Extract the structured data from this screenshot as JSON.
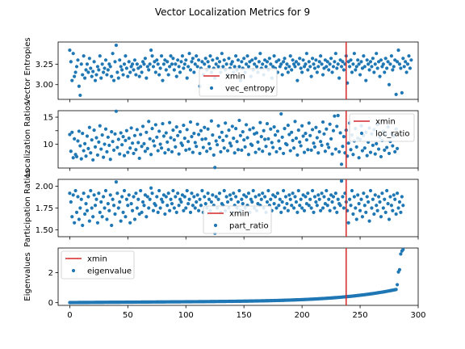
{
  "title": "Vector Localization Metrics for 9",
  "colors": {
    "points": "#1f77b4",
    "xmin_line": "#d62728"
  },
  "chart_data": [
    {
      "type": "scatter",
      "ylabel": "Vector Entropies",
      "xlim": [
        -10,
        300
      ],
      "ylim": [
        2.82,
        3.52
      ],
      "yticks": [
        3.0,
        3.25
      ],
      "yticklabels": [
        "3.00",
        "3.25"
      ],
      "xticks": [
        0,
        50,
        100,
        150,
        200,
        250,
        300
      ],
      "xticks_labeled": false,
      "legend": {
        "position": "lower-center",
        "entries": [
          "xmin",
          "vec_entropy"
        ]
      },
      "series": [
        {
          "name": "vec_entropy",
          "y": [
            3.42,
            3.28,
            3.05,
            3.38,
            3.1,
            3.15,
            3.22,
            3.3,
            2.98,
            2.87,
            3.25,
            3.12,
            3.35,
            3.08,
            3.18,
            3.25,
            3.15,
            3.32,
            3.2,
            3.1,
            3.16,
            3.28,
            3.05,
            3.12,
            3.22,
            3.18,
            3.35,
            3.08,
            3.25,
            3.15,
            3.2,
            3.3,
            3.12,
            3.18,
            3.25,
            3.22,
            3.1,
            3.38,
            3.05,
            3.28,
            3.48,
            3.15,
            3.08,
            3.3,
            3.22,
            3.18,
            3.12,
            3.25,
            3.35,
            3.2,
            3.1,
            3.28,
            3.15,
            3.22,
            3.25,
            3.18,
            3.3,
            3.12,
            3.25,
            3.2,
            3.1,
            3.22,
            3.15,
            3.28,
            3.25,
            3.32,
            3.08,
            3.22,
            3.18,
            3.25,
            3.42,
            3.35,
            3.22,
            3.28,
            3.15,
            3.3,
            3.25,
            3.12,
            3.2,
            3.35,
            3.05,
            3.25,
            3.3,
            3.18,
            3.28,
            3.12,
            3.22,
            3.35,
            3.25,
            3.32,
            3.18,
            3.25,
            3.1,
            3.3,
            3.22,
            3.15,
            3.28,
            3.35,
            3.2,
            3.25,
            3.3,
            3.08,
            3.22,
            3.38,
            3.18,
            3.28,
            3.32,
            3.15,
            3.25,
            3.35,
            3.22,
            3.3,
            2.98,
            3.2,
            3.28,
            3.12,
            3.25,
            3.32,
            3.18,
            3.28,
            3.22,
            3.35,
            3.15,
            3.3,
            3.2,
            3.08,
            3.25,
            3.32,
            3.22,
            3.28,
            3.15,
            3.38,
            3.22,
            3.3,
            3.18,
            3.25,
            3.12,
            3.32,
            3.2,
            3.25,
            3.28,
            3.15,
            3.22,
            3.35,
            3.18,
            3.3,
            3.22,
            3.05,
            3.28,
            3.2,
            3.32,
            3.15,
            3.25,
            3.35,
            3.22,
            3.28,
            3.1,
            3.3,
            3.18,
            3.25,
            3.32,
            3.22,
            3.15,
            3.28,
            3.38,
            3.2,
            3.25,
            3.12,
            3.3,
            3.22,
            3.28,
            3.18,
            3.32,
            3.25,
            3.08,
            3.22,
            3.35,
            3.2,
            3.28,
            3.15,
            3.3,
            3.22,
            3.25,
            3.12,
            3.28,
            3.32,
            3.2,
            3.25,
            3.15,
            3.22,
            3.35,
            3.18,
            3.3,
            3.25,
            3.22,
            3.28,
            3.05,
            3.25,
            3.32,
            3.2,
            3.15,
            3.3,
            3.22,
            3.25,
            3.38,
            3.18,
            3.28,
            3.22,
            3.1,
            3.32,
            3.25,
            3.2,
            3.3,
            3.15,
            3.22,
            3.28,
            3.35,
            3.25,
            3.12,
            3.2,
            3.3,
            3.22,
            3.28,
            3.18,
            3.25,
            3.32,
            3.15,
            3.22,
            3.28,
            3.38,
            3.2,
            3.25,
            3.08,
            3.3,
            3.22,
            3.28,
            3.18,
            3.25,
            3.35,
            3.02,
            3.28,
            3.22,
            3.3,
            3.15,
            3.25,
            3.38,
            3.18,
            3.22,
            3.3,
            3.25,
            3.12,
            3.28,
            3.2,
            3.35,
            3.22,
            3.05,
            3.3,
            3.25,
            3.18,
            3.28,
            3.22,
            3.32,
            3.15,
            3.25,
            3.38,
            3.2,
            3.28,
            3.1,
            3.3,
            3.22,
            3.25,
            3.15,
            3.32,
            3.2,
            3.28,
            3.0,
            3.25,
            3.35,
            3.18,
            3.22,
            3.3,
            2.88,
            3.28,
            3.42,
            3.25,
            3.2,
            2.9,
            3.32,
            3.22,
            3.28,
            3.15,
            3.25,
            3.35,
            3.2,
            3.3
          ]
        }
      ],
      "xmin": 238
    },
    {
      "type": "scatter",
      "ylabel": "Localization Ratios",
      "xlim": [
        -10,
        300
      ],
      "ylim": [
        5.6,
        16.2
      ],
      "yticks": [
        10,
        12.5,
        15
      ],
      "yticklabels": [
        "10",
        "",
        "15"
      ],
      "xticks": [
        0,
        50,
        100,
        150,
        200,
        250,
        300
      ],
      "xticks_labeled": false,
      "legend": {
        "position": "upper-right",
        "entries": [
          "xmin",
          "loc_ratio"
        ]
      },
      "series": [
        {
          "name": "loc_ratio",
          "y": [
            11.8,
            8.7,
            12.2,
            7.5,
            11.0,
            8.1,
            7.7,
            10.6,
            12.4,
            9.7,
            7.3,
            12.0,
            8.8,
            10.1,
            7.8,
            11.5,
            9.2,
            13.1,
            8.4,
            10.8,
            7.1,
            12.6,
            9.5,
            11.2,
            8.0,
            10.4,
            13.4,
            9.1,
            11.7,
            7.6,
            10.0,
            12.8,
            8.6,
            11.3,
            9.8,
            7.2,
            12.3,
            10.5,
            8.9,
            11.9,
            16.1,
            9.4,
            10.9,
            8.2,
            12.1,
            9.9,
            11.4,
            7.9,
            10.7,
            12.5,
            8.5,
            11.1,
            9.3,
            13.0,
            10.2,
            8.3,
            11.6,
            9.0,
            12.7,
            10.3,
            7.4,
            11.8,
            9.6,
            13.3,
            10.1,
            8.7,
            12.2,
            9.2,
            14.2,
            11.0,
            8.1,
            12.9,
            10.6,
            9.7,
            13.6,
            11.3,
            8.8,
            12.4,
            10.0,
            9.3,
            13.8,
            11.5,
            8.4,
            12.1,
            10.4,
            9.0,
            14.0,
            11.2,
            8.6,
            12.6,
            10.8,
            9.5,
            13.2,
            11.6,
            8.2,
            12.3,
            10.2,
            9.8,
            13.5,
            11.1,
            8.9,
            12.7,
            10.5,
            9.1,
            14.1,
            11.4,
            8.5,
            12.0,
            10.3,
            9.6,
            13.7,
            11.8,
            8.3,
            12.5,
            10.9,
            9.4,
            13.1,
            11.0,
            8.7,
            12.8,
            10.1,
            9.2,
            14.3,
            11.7,
            8.0,
            5.7,
            10.6,
            9.9,
            13.4,
            11.3,
            8.6,
            12.2,
            10.7,
            9.3,
            13.9,
            11.5,
            8.8,
            12.6,
            10.2,
            9.7,
            13.3,
            11.1,
            8.4,
            12.9,
            10.5,
            9.0,
            14.4,
            11.6,
            8.9,
            12.3,
            10.8,
            9.5,
            13.6,
            11.2,
            8.1,
            12.7,
            10.0,
            9.8,
            13.0,
            11.9,
            8.5,
            12.1,
            10.4,
            9.1,
            14.0,
            11.4,
            8.7,
            12.5,
            10.9,
            9.6,
            13.8,
            11.0,
            8.2,
            12.8,
            10.3,
            9.4,
            13.2,
            11.7,
            8.6,
            12.4,
            10.6,
            9.2,
            15.6,
            11.3,
            8.3,
            12.9,
            10.1,
            9.9,
            13.5,
            11.8,
            8.8,
            12.2,
            10.7,
            9.3,
            14.2,
            11.1,
            8.0,
            12.6,
            10.4,
            9.7,
            13.4,
            11.5,
            8.5,
            12.0,
            10.8,
            9.0,
            13.9,
            11.6,
            8.9,
            12.7,
            10.2,
            9.5,
            13.1,
            11.2,
            8.4,
            12.3,
            10.5,
            9.8,
            14.1,
            11.9,
            8.7,
            12.8,
            10.0,
            9.4,
            13.7,
            11.0,
            8.2,
            12.5,
            15.2,
            9.1,
            13.3,
            15.3,
            8.6,
            12.1,
            6.3,
            9.6,
            11.4,
            8.4,
            12.6,
            7.8,
            10.2,
            13.9,
            9.0,
            11.7,
            8.1,
            10.6,
            12.9,
            9.5,
            11.1,
            7.5,
            10.9,
            13.4,
            8.8,
            11.6,
            9.3,
            12.2,
            7.9,
            10.4,
            13.0,
            8.5,
            11.9,
            9.8,
            12.7,
            8.2,
            10.1,
            13.6,
            9.1,
            11.3,
            7.7,
            10.7,
            12.4,
            8.9,
            11.8,
            9.4,
            13.2,
            8.3,
            10.5,
            12.0,
            9.7,
            11.5,
            8.6,
            12.8,
            9.2
          ]
        }
      ],
      "xmin": 238
    },
    {
      "type": "scatter",
      "ylabel": "Participation Ratios",
      "xlim": [
        -10,
        300
      ],
      "ylim": [
        1.42,
        2.08
      ],
      "yticks": [
        1.5,
        1.75,
        2.0
      ],
      "yticklabels": [
        "1.50",
        "1.75",
        "2.00"
      ],
      "xticks": [
        0,
        50,
        100,
        150,
        200,
        250,
        300
      ],
      "xticks_labeled": false,
      "legend": {
        "position": "lower-center",
        "entries": [
          "xmin",
          "part_ratio"
        ]
      },
      "series": [
        {
          "name": "part_ratio",
          "y": [
            1.92,
            1.82,
            1.65,
            1.9,
            1.58,
            1.95,
            1.7,
            1.88,
            1.62,
            1.75,
            1.85,
            1.55,
            1.92,
            1.68,
            1.8,
            1.72,
            1.88,
            1.6,
            1.95,
            1.75,
            1.65,
            1.9,
            1.78,
            1.85,
            1.58,
            1.92,
            1.7,
            1.82,
            1.65,
            1.88,
            1.75,
            1.95,
            1.62,
            1.8,
            1.72,
            1.9,
            1.55,
            1.85,
            1.78,
            1.68,
            2.05,
            1.92,
            1.75,
            1.82,
            1.6,
            1.88,
            1.7,
            1.95,
            1.65,
            1.85,
            1.78,
            1.9,
            1.58,
            1.8,
            1.72,
            1.88,
            1.62,
            1.92,
            1.75,
            1.85,
            1.68,
            1.95,
            1.7,
            1.82,
            1.78,
            1.9,
            1.65,
            1.88,
            1.75,
            1.85,
            1.98,
            1.92,
            1.72,
            1.8,
            1.78,
            1.88,
            1.7,
            1.95,
            1.75,
            1.85,
            1.82,
            1.9,
            1.68,
            1.88,
            1.78,
            1.92,
            1.72,
            1.85,
            1.8,
            1.95,
            1.75,
            1.88,
            1.7,
            1.92,
            1.78,
            1.85,
            1.82,
            1.9,
            1.72,
            1.88,
            1.75,
            1.95,
            1.8,
            1.85,
            1.7,
            1.92,
            1.78,
            1.88,
            1.75,
            1.82,
            1.9,
            1.72,
            1.85,
            1.78,
            1.95,
            1.7,
            1.88,
            1.8,
            1.75,
            1.92,
            1.85,
            1.72,
            1.82,
            1.9,
            1.78,
            1.46,
            1.88,
            1.75,
            1.85,
            1.92,
            1.7,
            1.8,
            1.78,
            1.95,
            1.72,
            1.88,
            1.82,
            1.75,
            1.9,
            1.85,
            1.7,
            1.92,
            1.78,
            1.88,
            1.75,
            1.82,
            1.95,
            1.72,
            1.85,
            1.8,
            1.9,
            1.75,
            1.88,
            1.78,
            1.92,
            1.7,
            1.85,
            1.82,
            1.95,
            1.75,
            1.88,
            1.72,
            1.8,
            1.9,
            1.78,
            1.85,
            1.92,
            1.75,
            1.88,
            1.7,
            1.82,
            1.95,
            1.78,
            1.85,
            1.72,
            1.9,
            1.8,
            1.88,
            1.75,
            1.92,
            1.78,
            1.85,
            1.7,
            1.82,
            1.95,
            1.75,
            1.88,
            1.8,
            1.72,
            1.9,
            1.85,
            1.78,
            1.92,
            1.75,
            1.88,
            1.82,
            1.7,
            1.95,
            1.78,
            1.85,
            1.75,
            1.9,
            1.72,
            1.88,
            1.8,
            1.92,
            1.78,
            1.85,
            1.75,
            1.95,
            1.7,
            1.88,
            1.82,
            1.78,
            1.9,
            1.85,
            1.72,
            1.92,
            1.75,
            1.88,
            1.8,
            1.95,
            1.78,
            1.85,
            1.72,
            1.9,
            1.82,
            1.88,
            1.75,
            1.92,
            1.7,
            1.85,
            1.8,
            1.78,
            2.06,
            1.88,
            1.75,
            1.92,
            1.82,
            1.72,
            1.58,
            1.85,
            1.78,
            1.95,
            1.68,
            1.88,
            1.75,
            1.62,
            1.9,
            1.8,
            1.72,
            1.85,
            1.65,
            1.92,
            1.78,
            1.7,
            1.88,
            1.82,
            1.6,
            1.95,
            1.75,
            1.85,
            1.68,
            1.9,
            1.78,
            1.72,
            1.88,
            1.82,
            1.65,
            1.92,
            1.75,
            1.85,
            1.7,
            1.95,
            1.8,
            1.62,
            1.88,
            1.78,
            1.72,
            1.9,
            1.85,
            1.68,
            1.92,
            1.75,
            1.82,
            1.7,
            1.88,
            1.78
          ]
        }
      ],
      "xmin": 238
    },
    {
      "type": "scatter",
      "ylabel": "Eigenvalues",
      "xlim": [
        -10,
        300
      ],
      "ylim": [
        -0.18,
        3.65
      ],
      "yticks": [
        0,
        2
      ],
      "yticklabels": [
        "0",
        "2"
      ],
      "xticks": [
        0,
        50,
        100,
        150,
        200,
        250,
        300
      ],
      "xticklabels": [
        "0",
        "50",
        "100",
        "150",
        "200",
        "250",
        "300"
      ],
      "xticks_labeled": true,
      "legend": {
        "position": "upper-left",
        "entries": [
          "xmin",
          "eigenvalue"
        ]
      },
      "eigen_curve": {
        "n": 288,
        "start": 0.01,
        "end_tail_from": 238,
        "tail_end": 0.88,
        "jump_values": [
          1.2,
          2.05,
          2.2,
          3.25,
          3.45,
          3.55
        ]
      },
      "xmin": 238
    }
  ]
}
